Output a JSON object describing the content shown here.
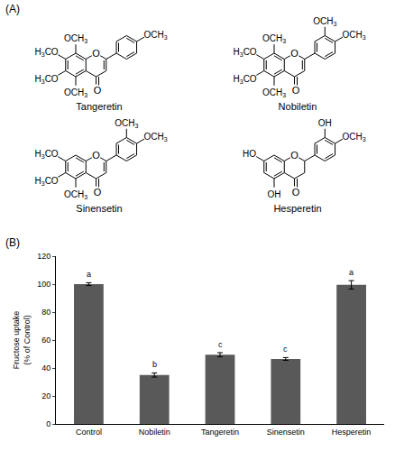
{
  "panel_a": {
    "label": "(A)",
    "structures": [
      {
        "name": "Tangeretin",
        "ring_oxygen": "O",
        "carbonyl_oxygen": "O",
        "c2_c3_double": true,
        "substituents": [
          {
            "position": "8",
            "text": "OCH3"
          },
          {
            "position": "7",
            "text": "H3CO"
          },
          {
            "position": "6",
            "text": "H3CO"
          },
          {
            "position": "5",
            "text": "OCH3"
          },
          {
            "position": "4'",
            "text": "OCH3"
          }
        ]
      },
      {
        "name": "Nobiletin",
        "ring_oxygen": "O",
        "carbonyl_oxygen": "O",
        "c2_c3_double": true,
        "substituents": [
          {
            "position": "8",
            "text": "OCH3"
          },
          {
            "position": "7",
            "text": "H3CO"
          },
          {
            "position": "6",
            "text": "H3CO"
          },
          {
            "position": "5",
            "text": "OCH3"
          },
          {
            "position": "3'",
            "text": "OCH3"
          },
          {
            "position": "4'",
            "text": "OCH3"
          }
        ]
      },
      {
        "name": "Sinensetin",
        "ring_oxygen": "O",
        "carbonyl_oxygen": "O",
        "c2_c3_double": true,
        "substituents": [
          {
            "position": "7",
            "text": "H3CO"
          },
          {
            "position": "6",
            "text": "H3CO"
          },
          {
            "position": "5",
            "text": "OCH3"
          },
          {
            "position": "3'",
            "text": "OCH3"
          },
          {
            "position": "4'",
            "text": "OCH3"
          }
        ]
      },
      {
        "name": "Hesperetin",
        "ring_oxygen": "O",
        "carbonyl_oxygen": "O",
        "c2_c3_double": false,
        "substituents": [
          {
            "position": "7",
            "text": "HO"
          },
          {
            "position": "5",
            "text": "OH"
          },
          {
            "position": "3'",
            "text": "OH"
          },
          {
            "position": "4'",
            "text": "OCH3"
          }
        ]
      }
    ]
  },
  "panel_b": {
    "label": "(B)"
  },
  "chart_data": {
    "type": "bar",
    "categories": [
      "Control",
      "Nobiletin",
      "Tangeretin",
      "Sinensetin",
      "Hesperetin"
    ],
    "values": [
      100,
      35,
      49.5,
      46.5,
      99.5
    ],
    "errors": [
      1,
      1.5,
      1.5,
      1,
      3
    ],
    "letters": [
      "a",
      "b",
      "c",
      "c",
      "a"
    ],
    "color": "#595959",
    "ylabel": [
      "Fructose uptake",
      "(% of Control)"
    ],
    "ylim": [
      0,
      120
    ],
    "yticks": [
      0,
      20,
      40,
      60,
      80,
      100,
      120
    ],
    "grid": false
  }
}
